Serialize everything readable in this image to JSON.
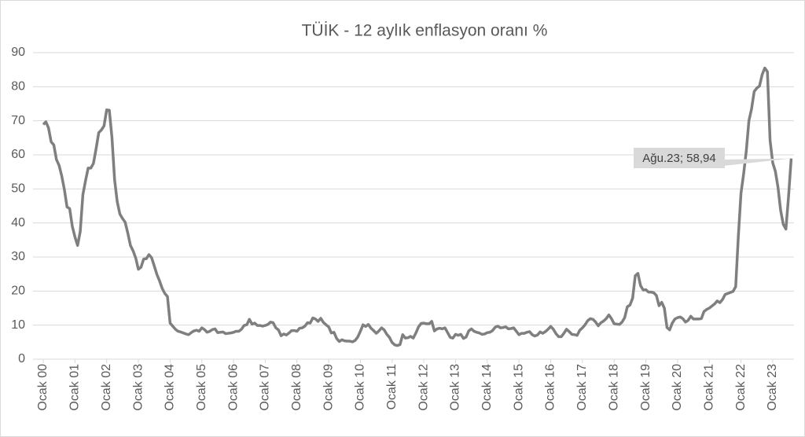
{
  "chart_data": {
    "type": "line",
    "title": "TÜİK - 12 aylık enflasyon oranı %",
    "color": "#7f7f7f",
    "grid": true,
    "ylim": [
      0,
      90
    ],
    "yticks": [
      0,
      10,
      20,
      30,
      40,
      50,
      60,
      70,
      80,
      90
    ],
    "annotation": "Ağu.23; 58,94",
    "categories": [
      "Ocak 00",
      null,
      null,
      null,
      null,
      null,
      null,
      null,
      null,
      null,
      null,
      null,
      "Ocak 01",
      null,
      null,
      null,
      null,
      null,
      null,
      null,
      null,
      null,
      null,
      null,
      "Ocak 02",
      null,
      null,
      null,
      null,
      null,
      null,
      null,
      null,
      null,
      null,
      null,
      "Ocak 03",
      null,
      null,
      null,
      null,
      null,
      null,
      null,
      null,
      null,
      null,
      null,
      "Ocak 04",
      null,
      null,
      null,
      null,
      null,
      null,
      null,
      null,
      null,
      null,
      null,
      "Ocak 05",
      null,
      null,
      null,
      null,
      null,
      null,
      null,
      null,
      null,
      null,
      null,
      "Ocak 06",
      null,
      null,
      null,
      null,
      null,
      null,
      null,
      null,
      null,
      null,
      null,
      "Ocak 07",
      null,
      null,
      null,
      null,
      null,
      null,
      null,
      null,
      null,
      null,
      null,
      "Ocak 08",
      null,
      null,
      null,
      null,
      null,
      null,
      null,
      null,
      null,
      null,
      null,
      "Ocak 09",
      null,
      null,
      null,
      null,
      null,
      null,
      null,
      null,
      null,
      null,
      null,
      "Ocak 10",
      null,
      null,
      null,
      null,
      null,
      null,
      null,
      null,
      null,
      null,
      null,
      "Ocak 11",
      null,
      null,
      null,
      null,
      null,
      null,
      null,
      null,
      null,
      null,
      null,
      "Ocak 12",
      null,
      null,
      null,
      null,
      null,
      null,
      null,
      null,
      null,
      null,
      null,
      "Ocak 13",
      null,
      null,
      null,
      null,
      null,
      null,
      null,
      null,
      null,
      null,
      null,
      "Ocak 14",
      null,
      null,
      null,
      null,
      null,
      null,
      null,
      null,
      null,
      null,
      null,
      "Ocak 15",
      null,
      null,
      null,
      null,
      null,
      null,
      null,
      null,
      null,
      null,
      null,
      "Ocak 16",
      null,
      null,
      null,
      null,
      null,
      null,
      null,
      null,
      null,
      null,
      null,
      "Ocak 17",
      null,
      null,
      null,
      null,
      null,
      null,
      null,
      null,
      null,
      null,
      null,
      "Ocak 18",
      null,
      null,
      null,
      null,
      null,
      null,
      null,
      null,
      null,
      null,
      null,
      "Ocak 19",
      null,
      null,
      null,
      null,
      null,
      null,
      null,
      null,
      null,
      null,
      null,
      "Ocak 20",
      null,
      null,
      null,
      null,
      null,
      null,
      null,
      null,
      null,
      null,
      null,
      "Ocak 21",
      null,
      null,
      null,
      null,
      null,
      null,
      null,
      null,
      null,
      null,
      null,
      "Ocak 22",
      null,
      null,
      null,
      null,
      null,
      null,
      null,
      null,
      null,
      null,
      null,
      "Ocak 23",
      null,
      null,
      null,
      null,
      null,
      null,
      null
    ],
    "values": [
      68.9,
      69.7,
      67.9,
      63.8,
      62.9,
      58.6,
      56.9,
      53.8,
      49.8,
      44.7,
      44.2,
      39.0,
      35.9,
      33.4,
      37.5,
      48.3,
      52.4,
      56.1,
      56.1,
      57.5,
      61.8,
      66.5,
      67.3,
      68.5,
      73.2,
      73.1,
      65.1,
      52.7,
      46.2,
      42.6,
      41.3,
      40.2,
      37.0,
      33.4,
      31.8,
      29.7,
      26.4,
      27.0,
      29.4,
      29.5,
      30.7,
      29.8,
      27.4,
      24.9,
      23.0,
      20.8,
      19.3,
      18.4,
      10.6,
      9.7,
      8.8,
      8.2,
      8.0,
      7.7,
      7.4,
      7.2,
      7.8,
      8.3,
      8.5,
      8.2,
      9.2,
      8.7,
      7.9,
      8.2,
      8.7,
      8.9,
      7.8,
      7.9,
      8.0,
      7.5,
      7.6,
      7.7,
      7.9,
      8.2,
      8.2,
      8.8,
      9.9,
      10.1,
      11.7,
      10.3,
      10.6,
      9.9,
      9.9,
      9.7,
      9.9,
      10.2,
      10.9,
      10.7,
      9.2,
      8.6,
      6.9,
      7.4,
      7.1,
      7.7,
      8.4,
      8.4,
      8.2,
      9.1,
      9.2,
      9.7,
      10.7,
      10.6,
      12.1,
      11.8,
      11.1,
      12.0,
      10.8,
      10.1,
      9.5,
      7.7,
      7.9,
      6.1,
      5.2,
      5.7,
      5.4,
      5.3,
      5.3,
      5.1,
      5.5,
      6.5,
      8.2,
      10.1,
      9.6,
      10.2,
      9.1,
      8.4,
      7.6,
      8.3,
      9.2,
      8.6,
      7.3,
      6.4,
      4.9,
      4.2,
      4.0,
      4.3,
      7.2,
      6.2,
      6.3,
      6.7,
      6.2,
      7.7,
      9.5,
      10.5,
      10.6,
      10.4,
      10.4,
      11.1,
      8.3,
      8.9,
      9.1,
      8.9,
      9.2,
      7.8,
      6.4,
      6.2,
      7.3,
      7.0,
      7.3,
      6.1,
      6.5,
      8.3,
      8.9,
      8.2,
      7.9,
      7.7,
      7.3,
      7.4,
      7.8,
      7.9,
      8.4,
      9.4,
      9.7,
      9.2,
      9.3,
      9.5,
      8.9,
      9.0,
      9.2,
      8.2,
      7.2,
      7.6,
      7.6,
      7.9,
      8.1,
      7.2,
      6.8,
      7.1,
      8.0,
      7.6,
      8.1,
      8.8,
      9.6,
      8.8,
      7.5,
      6.6,
      6.6,
      7.6,
      8.8,
      8.1,
      7.3,
      7.2,
      7.0,
      8.5,
      9.2,
      10.1,
      11.3,
      11.9,
      11.7,
      10.9,
      9.8,
      10.7,
      11.2,
      11.9,
      13.0,
      11.9,
      10.4,
      10.3,
      10.2,
      10.9,
      12.2,
      15.4,
      15.9,
      17.9,
      24.5,
      25.2,
      21.6,
      20.3,
      20.4,
      19.7,
      19.7,
      19.5,
      18.7,
      15.7,
      16.7,
      15.0,
      9.3,
      8.6,
      10.6,
      11.8,
      12.2,
      12.4,
      11.9,
      10.9,
      11.4,
      12.6,
      11.8,
      11.8,
      11.8,
      11.9,
      14.0,
      14.6,
      15.0,
      15.6,
      16.2,
      17.1,
      16.6,
      17.5,
      19.0,
      19.3,
      19.6,
      19.9,
      21.3,
      36.1,
      48.7,
      54.4,
      61.1,
      70.0,
      73.5,
      78.6,
      79.6,
      80.2,
      83.5,
      85.5,
      84.4,
      64.3,
      57.7,
      55.2,
      50.5,
      43.7,
      39.6,
      38.2,
      47.8,
      58.94
    ]
  }
}
